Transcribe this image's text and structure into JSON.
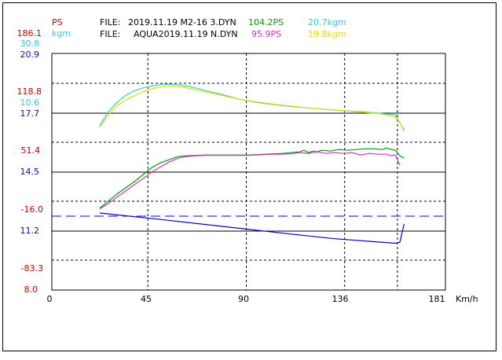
{
  "header": {
    "left_units": {
      "ps": "PS",
      "kgm": "kgm"
    },
    "files": [
      {
        "label": "FILE:",
        "name": "2019.11.19 M2-16 3.DYN",
        "ps": "104.2PS",
        "kgm": "20.7kgm"
      },
      {
        "label": "FILE:",
        "name": "AQUA2019.11.19 N.DYN",
        "ps": "95.9PS",
        "kgm": "19.8kgm"
      }
    ]
  },
  "colors": {
    "ps_label": "#cc0000",
    "kgm_label": "#33cccc",
    "purple_label": "#330099",
    "file1_ps": "#009900",
    "file1_kgm": "#33cccc",
    "file2_ps": "#cc33cc",
    "file2_kgm": "#dddd00",
    "frame": "#000000",
    "dashed_line": "#0000ff",
    "lower_line": "#0000cc"
  },
  "chart_data": {
    "type": "line",
    "xlabel": "Km/h",
    "xlim": [
      0,
      181
    ],
    "x_ticks": [
      "0",
      "45",
      "90",
      "136",
      "181"
    ],
    "y_tick_groups": [
      {
        "ps": "186.1",
        "kgm": "30.8",
        "other": "20.9"
      },
      {
        "ps": "118.8",
        "kgm": "10.6",
        "other": "17.7"
      },
      {
        "ps": "51.4",
        "other": "14.5"
      },
      {
        "ps": "-16.0",
        "other": "11.2"
      },
      {
        "ps": "-83.3",
        "other": "8.0"
      }
    ],
    "ps_axis": {
      "ylim": [
        -117,
        186.1
      ]
    },
    "kgm_axis": {
      "ylim": [
        -20,
        30.8
      ]
    },
    "lower_axis": {
      "ylim": [
        8.0,
        20.9
      ]
    },
    "series": [
      {
        "axis": "ps",
        "color": "#009900",
        "x": [
          22,
          26,
          30,
          34,
          38,
          42,
          46,
          50,
          54,
          58,
          62,
          66,
          70,
          74,
          78,
          82,
          86,
          90,
          94,
          98,
          102,
          106,
          110,
          114,
          116,
          118,
          120,
          122,
          124,
          128,
          132,
          136,
          140,
          144,
          148,
          152,
          154,
          156,
          158,
          160,
          162
        ],
        "y": [
          -12,
          -3,
          6,
          14,
          22,
          31,
          40,
          46,
          50,
          54,
          55,
          55.5,
          56,
          56,
          56,
          56,
          56,
          56,
          56.5,
          57,
          57.5,
          58,
          59,
          60,
          62,
          59,
          61,
          60,
          62,
          61,
          63,
          62,
          63,
          64,
          64,
          63,
          65,
          63,
          62,
          55,
          52
        ]
      },
      {
        "axis": "ps",
        "color": "#cc33cc",
        "x": [
          22,
          26,
          30,
          34,
          38,
          42,
          46,
          50,
          54,
          58,
          62,
          66,
          70,
          74,
          78,
          82,
          86,
          90,
          94,
          98,
          102,
          106,
          110,
          114,
          118,
          122,
          126,
          130,
          134,
          138,
          142,
          146,
          150,
          154,
          156,
          158,
          160
        ],
        "y": [
          -13,
          -6,
          2,
          10,
          18,
          26,
          34,
          41,
          47,
          52,
          54,
          55,
          55.5,
          55.5,
          55.5,
          55.5,
          55.5,
          55.5,
          56,
          56.5,
          57,
          57,
          57.5,
          59,
          58,
          60,
          58,
          59,
          58,
          59,
          56,
          58,
          57,
          57,
          55,
          56,
          43
        ]
      },
      {
        "axis": "kgm",
        "color": "#33cccc",
        "x": [
          22,
          26,
          30,
          34,
          38,
          42,
          46,
          50,
          54,
          58,
          62,
          66,
          70,
          78,
          86,
          94,
          102,
          110,
          118,
          126,
          134,
          142,
          150,
          158,
          162
        ],
        "y": [
          15.3,
          18.3,
          20.3,
          21.8,
          22.8,
          23.4,
          23.8,
          24.1,
          24.2,
          24.1,
          23.8,
          23.4,
          22.9,
          22.0,
          21.0,
          20.3,
          19.8,
          19.4,
          19.1,
          18.8,
          18.5,
          18.3,
          18.0,
          17.6,
          14.2
        ]
      },
      {
        "axis": "kgm",
        "color": "#dddd00",
        "x": [
          22,
          26,
          30,
          34,
          38,
          42,
          46,
          50,
          54,
          56,
          58,
          62,
          66,
          70,
          78,
          86,
          94,
          102,
          110,
          118,
          126,
          134,
          142,
          150,
          158,
          162
        ],
        "y": [
          14.9,
          17.6,
          19.6,
          20.8,
          21.7,
          22.6,
          23.2,
          23.6,
          23.8,
          23.8,
          23.7,
          23.4,
          23.0,
          22.6,
          21.8,
          21.0,
          20.4,
          19.9,
          19.5,
          19.1,
          18.8,
          18.5,
          18.2,
          17.9,
          17.2,
          14.5
        ]
      },
      {
        "axis": "lower",
        "color": "#0000cc",
        "x": [
          22,
          50,
          80,
          110,
          130,
          158,
          160,
          162
        ],
        "y": [
          12.2,
          11.85,
          11.45,
          11.05,
          10.8,
          10.55,
          10.6,
          11.6
        ]
      }
    ]
  }
}
